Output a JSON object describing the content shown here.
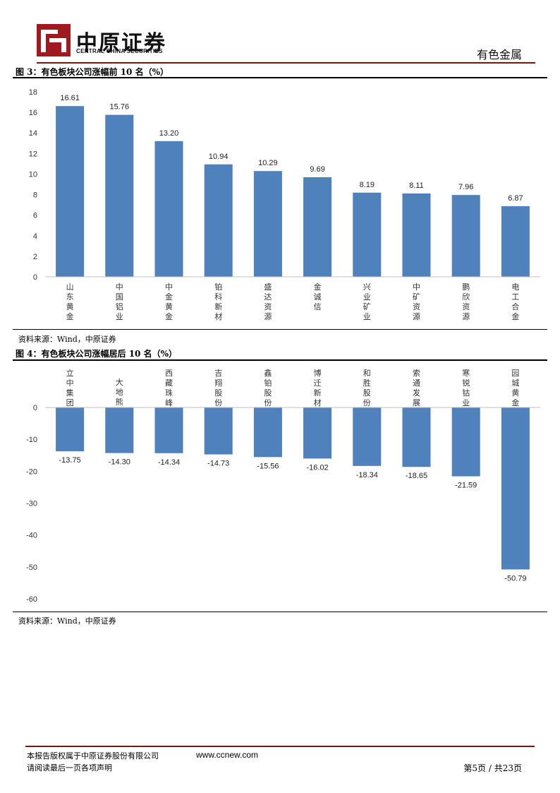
{
  "header": {
    "brand_cn": "中原证券",
    "brand_en": "CENTRAL CHINA SECURITIES",
    "section": "有色金属",
    "colors": {
      "brand_red": "#a0191e",
      "rule": "#7a1414"
    }
  },
  "figure3": {
    "title": "图 3：有色板块公司涨幅前 10 名（%）",
    "source": "资料来源：Wind，中原证券"
  },
  "figure4": {
    "title": "图 4：有色板块公司涨幅居后 10 名（%）",
    "source": "资料来源：Wind，中原证券"
  },
  "footer": {
    "copyright": "本报告版权属于中原证券股份有限公司",
    "url": "www.ccnew.com",
    "note": "请阅读最后一页各项声明",
    "page": "第5页 / 共23页"
  },
  "chart_data": [
    {
      "type": "bar",
      "title": "",
      "categories": [
        "山东黄金",
        "中国铝业",
        "中金黄金",
        "铂科新材",
        "盛达资源",
        "金诚信",
        "兴业矿业",
        "中矿资源",
        "鹏欣资源",
        "电工合金"
      ],
      "values": [
        16.61,
        15.76,
        13.2,
        10.94,
        10.29,
        9.69,
        8.19,
        8.11,
        7.96,
        6.87
      ],
      "value_labels": [
        "16.61",
        "15.76",
        "13.20",
        "10.94",
        "10.29",
        "9.69",
        "8.19",
        "8.11",
        "7.96",
        "6.87"
      ],
      "yticks": [
        "0",
        "2",
        "4",
        "6",
        "8",
        "10",
        "12",
        "14",
        "16",
        "18"
      ],
      "ylim": [
        0,
        18
      ],
      "grid": false,
      "legend": "none",
      "bar_color": "#4f81bd"
    },
    {
      "type": "bar",
      "title": "",
      "categories": [
        "立中集团",
        "大地熊",
        "西藏珠峰",
        "吉翔股份",
        "鑫铂股份",
        "博迁新材",
        "和胜股份",
        "索通发展",
        "寒锐钴业",
        "园城黄金"
      ],
      "values": [
        -13.75,
        -14.3,
        -14.34,
        -14.73,
        -15.56,
        -16.02,
        -18.34,
        -18.65,
        -21.59,
        -50.79
      ],
      "value_labels": [
        "-13.75",
        "-14.30",
        "-14.34",
        "-14.73",
        "-15.56",
        "-16.02",
        "-18.34",
        "-18.65",
        "-21.59",
        "-50.79"
      ],
      "yticks": [
        "0",
        "-10",
        "-20",
        "-30",
        "-40",
        "-50",
        "-60"
      ],
      "ylim": [
        -60,
        0
      ],
      "grid": false,
      "legend": "none",
      "bar_color": "#4f81bd"
    }
  ]
}
